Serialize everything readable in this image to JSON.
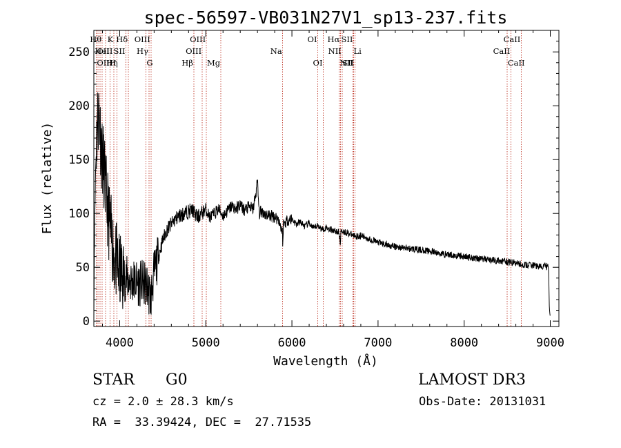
{
  "chart_data": {
    "type": "line",
    "title": "spec-56597-VB031N27V1_sp13-237.fits",
    "xlabel": "Wavelength (Å)",
    "ylabel": "Flux (relative)",
    "xlim": [
      3700,
      9100
    ],
    "ylim": [
      -5,
      270
    ],
    "xticks": [
      4000,
      5000,
      6000,
      7000,
      8000,
      9000
    ],
    "yticks": [
      0,
      50,
      100,
      150,
      200,
      250
    ],
    "series": [
      {
        "name": "flux",
        "x": [
          3700,
          3705,
          3720,
          3740,
          3760,
          3780,
          3800,
          3820,
          3840,
          3860,
          3880,
          3900,
          3920,
          3940,
          3960,
          3980,
          4000,
          4030,
          4060,
          4100,
          4150,
          4200,
          4250,
          4300,
          4330,
          4360,
          4400,
          4450,
          4500,
          4550,
          4600,
          4650,
          4700,
          4750,
          4800,
          4850,
          4900,
          4950,
          5000,
          5050,
          5100,
          5150,
          5200,
          5250,
          5300,
          5350,
          5400,
          5450,
          5500,
          5550,
          5580,
          5600,
          5620,
          5650,
          5700,
          5750,
          5800,
          5850,
          5890,
          5895,
          5900,
          5950,
          6000,
          6050,
          6100,
          6150,
          6200,
          6250,
          6300,
          6350,
          6400,
          6450,
          6500,
          6550,
          6563,
          6570,
          6600,
          6650,
          6700,
          6750,
          6800,
          6850,
          6900,
          6950,
          7000,
          7100,
          7200,
          7300,
          7400,
          7500,
          7600,
          7700,
          7800,
          7900,
          8000,
          8100,
          8200,
          8300,
          8400,
          8500,
          8600,
          8700,
          8800,
          8850,
          8900,
          8950,
          8980,
          8990,
          9000
        ],
        "values": [
          0,
          60,
          140,
          185,
          195,
          170,
          150,
          140,
          118,
          105,
          90,
          80,
          70,
          60,
          55,
          48,
          45,
          42,
          40,
          38,
          37,
          36,
          35,
          34,
          30,
          20,
          45,
          60,
          75,
          85,
          90,
          95,
          98,
          100,
          102,
          103,
          96,
          100,
          104,
          96,
          100,
          104,
          98,
          102,
          107,
          104,
          108,
          103,
          106,
          104,
          118,
          130,
          100,
          102,
          99,
          98,
          97,
          94,
          82,
          70,
          90,
          94,
          95,
          90,
          92,
          88,
          91,
          86,
          89,
          85,
          87,
          85,
          84,
          82,
          70,
          85,
          83,
          82,
          80,
          79,
          79,
          78,
          76,
          75,
          73,
          71,
          69,
          68,
          67,
          66,
          65,
          63,
          62,
          61,
          60,
          59,
          58,
          57,
          56,
          55,
          54,
          52,
          52,
          51,
          50,
          52,
          48,
          10,
          3
        ]
      }
    ],
    "lines": [
      {
        "label": "Hθ",
        "x": 3798,
        "row": 1,
        "pos": "left"
      },
      {
        "label": "K",
        "x": 3934,
        "row": 1,
        "pos": "left"
      },
      {
        "label": "Hδ",
        "x": 4102,
        "row": 1,
        "pos": "left"
      },
      {
        "label": "OIII",
        "x": 4363,
        "row": 1,
        "pos": "left"
      },
      {
        "label": "OIII",
        "x": 5007,
        "row": 1,
        "pos": "left"
      },
      {
        "label": "OI",
        "x": 6300,
        "row": 1,
        "pos": "left"
      },
      {
        "label": "Hα",
        "x": 6563,
        "row": 1,
        "pos": "left"
      },
      {
        "label": "SII",
        "x": 6716,
        "row": 1,
        "pos": "left"
      },
      {
        "label": "CaII",
        "x": 8662,
        "row": 1,
        "pos": "left"
      },
      {
        "label": "OIII",
        "x": 3727,
        "row": 2,
        "pos": "right"
      },
      {
        "label": "HeI",
        "x": 3889,
        "row": 2,
        "pos": "left"
      },
      {
        "label": "SII",
        "x": 4072,
        "row": 2,
        "pos": "left"
      },
      {
        "label": "Hγ",
        "x": 4340,
        "row": 2,
        "pos": "left"
      },
      {
        "label": "OIII",
        "x": 4959,
        "row": 2,
        "pos": "left"
      },
      {
        "label": "Na",
        "x": 5893,
        "row": 2,
        "pos": "left"
      },
      {
        "label": "NII",
        "x": 6583,
        "row": 2,
        "pos": "left"
      },
      {
        "label": "Li",
        "x": 6708,
        "row": 2,
        "pos": "right"
      },
      {
        "label": "CaII",
        "x": 8542,
        "row": 2,
        "pos": "left"
      },
      {
        "label": "OIII",
        "x": 3727,
        "row": 3,
        "pos": "right"
      },
      {
        "label": "Hη",
        "x": 3835,
        "row": 3,
        "pos": "right"
      },
      {
        "label": "H",
        "x": 3968,
        "row": 3,
        "pos": "left"
      },
      {
        "label": "G",
        "x": 4304,
        "row": 3,
        "pos": "right"
      },
      {
        "label": "Hβ",
        "x": 4861,
        "row": 3,
        "pos": "left"
      },
      {
        "label": "Mg",
        "x": 5175,
        "row": 3,
        "pos": "left"
      },
      {
        "label": "OI",
        "x": 6364,
        "row": 3,
        "pos": "left"
      },
      {
        "label": "NII",
        "x": 6548,
        "row": 3,
        "pos": "right"
      },
      {
        "label": "SII",
        "x": 6731,
        "row": 3,
        "pos": "left"
      },
      {
        "label": "CaII",
        "x": 8498,
        "row": 3,
        "pos": "right"
      }
    ],
    "extra_line_positions": [
      3750,
      3771,
      3889,
      3970,
      4102,
      4861,
      6716,
      8498
    ]
  },
  "info": {
    "class": "STAR",
    "subclass": "G0",
    "survey": "LAMOST DR3",
    "cz": "cz = 2.0 ± 28.3 km/s",
    "obs_date": "Obs-Date: 20131031",
    "coords": "RA =  33.39424, DEC =  27.71535"
  }
}
